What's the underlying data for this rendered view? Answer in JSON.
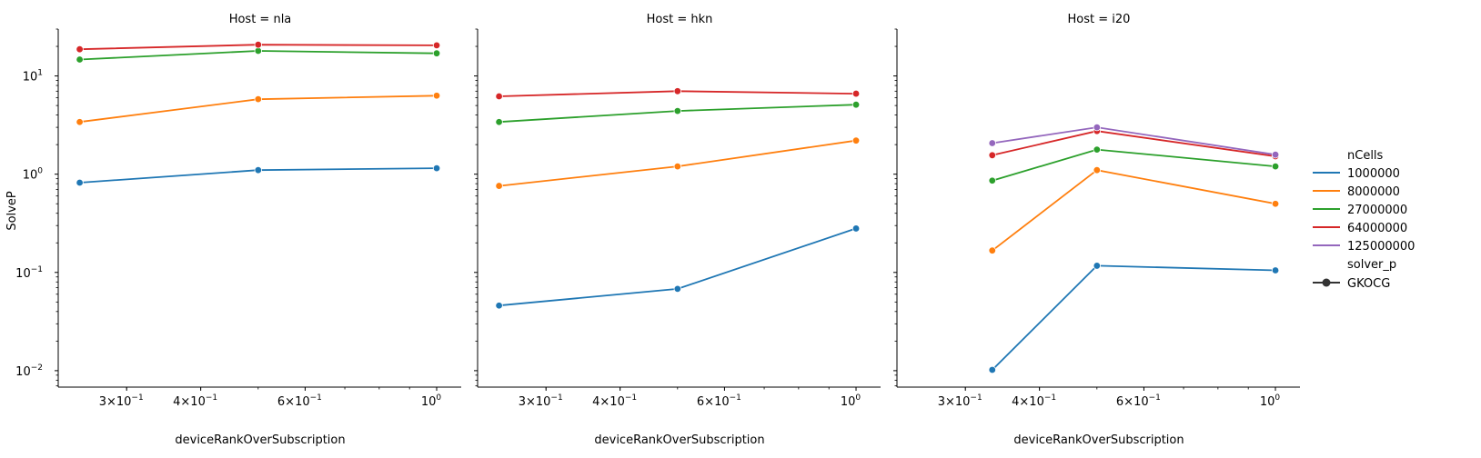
{
  "chart_data": {
    "type": "line",
    "xscale": "log",
    "yscale": "log",
    "xlabel": "deviceRankOverSubscription",
    "ylabel": "SolveP",
    "xlim": [
      0.23,
      1.1
    ],
    "ylim": [
      0.0068,
      30
    ],
    "yticks": [
      {
        "value": 0.01,
        "base": "10",
        "exp": "−2"
      },
      {
        "value": 0.1,
        "base": "10",
        "exp": "−1"
      },
      {
        "value": 1,
        "base": "10",
        "exp": "0"
      },
      {
        "value": 10,
        "base": "10",
        "exp": "1"
      }
    ],
    "xticks": [
      {
        "value": 0.3,
        "mant": "3×10",
        "exp": "−1"
      },
      {
        "value": 0.4,
        "mant": "4×10",
        "exp": "−1"
      },
      {
        "value": 0.6,
        "mant": "6×10",
        "exp": "−1"
      },
      {
        "value": 1,
        "mant": "10",
        "exp": "0"
      }
    ],
    "legend": {
      "title": "nCells",
      "entries": [
        {
          "label": "1000000",
          "color": "#1f77b4"
        },
        {
          "label": "8000000",
          "color": "#ff7f0e"
        },
        {
          "label": "27000000",
          "color": "#2ca02c"
        },
        {
          "label": "64000000",
          "color": "#d62728"
        },
        {
          "label": "125000000",
          "color": "#9467bd"
        }
      ],
      "style_title": "solver_p",
      "style_label": "GKOCG",
      "placement": "right"
    },
    "panels": [
      {
        "title": "Host = nla",
        "series": [
          {
            "name": "1000000",
            "color": "#1f77b4",
            "x": [
              0.25,
              0.5,
              1
            ],
            "y": [
              0.82,
              1.1,
              1.15
            ]
          },
          {
            "name": "8000000",
            "color": "#ff7f0e",
            "x": [
              0.25,
              0.5,
              1
            ],
            "y": [
              3.4,
              5.8,
              6.3
            ]
          },
          {
            "name": "27000000",
            "color": "#2ca02c",
            "x": [
              0.25,
              0.5,
              1
            ],
            "y": [
              14.7,
              18.0,
              17.0
            ]
          },
          {
            "name": "64000000",
            "color": "#d62728",
            "x": [
              0.25,
              0.5,
              1
            ],
            "y": [
              18.7,
              20.8,
              20.5
            ]
          }
        ]
      },
      {
        "title": "Host = hkn",
        "series": [
          {
            "name": "1000000",
            "color": "#1f77b4",
            "x": [
              0.25,
              0.5,
              1
            ],
            "y": [
              0.046,
              0.068,
              0.28
            ]
          },
          {
            "name": "8000000",
            "color": "#ff7f0e",
            "x": [
              0.25,
              0.5,
              1
            ],
            "y": [
              0.76,
              1.2,
              2.2
            ]
          },
          {
            "name": "27000000",
            "color": "#2ca02c",
            "x": [
              0.25,
              0.5,
              1
            ],
            "y": [
              3.4,
              4.4,
              5.1
            ]
          },
          {
            "name": "64000000",
            "color": "#d62728",
            "x": [
              0.25,
              0.5,
              1
            ],
            "y": [
              6.2,
              7.0,
              6.6
            ]
          }
        ]
      },
      {
        "title": "Host = i20",
        "series": [
          {
            "name": "1000000",
            "color": "#1f77b4",
            "x": [
              0.333,
              0.5,
              1
            ],
            "y": [
              0.0102,
              0.117,
              0.105
            ]
          },
          {
            "name": "8000000",
            "color": "#ff7f0e",
            "x": [
              0.333,
              0.5,
              1
            ],
            "y": [
              0.167,
              1.1,
              0.5
            ]
          },
          {
            "name": "27000000",
            "color": "#2ca02c",
            "x": [
              0.333,
              0.5,
              1
            ],
            "y": [
              0.86,
              1.78,
              1.2
            ]
          },
          {
            "name": "64000000",
            "color": "#d62728",
            "x": [
              0.333,
              0.5,
              1
            ],
            "y": [
              1.56,
              2.75,
              1.52
            ]
          },
          {
            "name": "125000000",
            "color": "#9467bd",
            "x": [
              0.333,
              0.5,
              1
            ],
            "y": [
              2.07,
              3.0,
              1.58
            ]
          }
        ]
      }
    ]
  }
}
